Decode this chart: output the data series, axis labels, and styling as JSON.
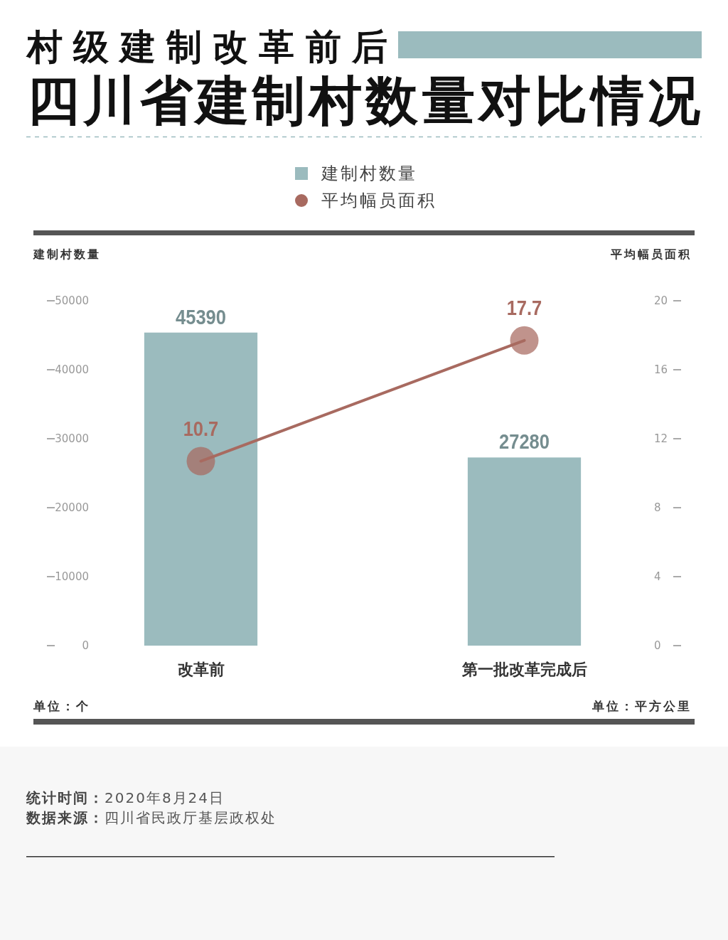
{
  "chart_data": {
    "type": "bar",
    "title": "村级建制改革前后",
    "subtitle": "四川省建制村数量对比情况",
    "ylabel": "建制村数量",
    "y2label": "平均幅员面积",
    "categories": [
      "改革前",
      "第一批改革完成后"
    ],
    "series": [
      {
        "name": "建制村数量",
        "color": "#9bbbbe",
        "values": [
          45390,
          27280
        ]
      },
      {
        "name": "平均幅员面积",
        "type": "line",
        "axis": "y2",
        "color": "#a86a60",
        "values": [
          10.7,
          17.7
        ]
      }
    ],
    "ylim": [
      0,
      50000
    ],
    "yticks": [
      0,
      10000,
      20000,
      30000,
      40000,
      50000
    ],
    "y2lim": [
      0,
      20
    ],
    "y2ticks": [
      0,
      4,
      8,
      12,
      16,
      20
    ],
    "data_labels": true,
    "legend": "top",
    "marker": "circle",
    "annotations": [
      "单位：个",
      "单位：平方公里",
      "统计时间：2020年8月24日",
      "数据来源：四川省民政厅基层政权处"
    ]
  }
}
